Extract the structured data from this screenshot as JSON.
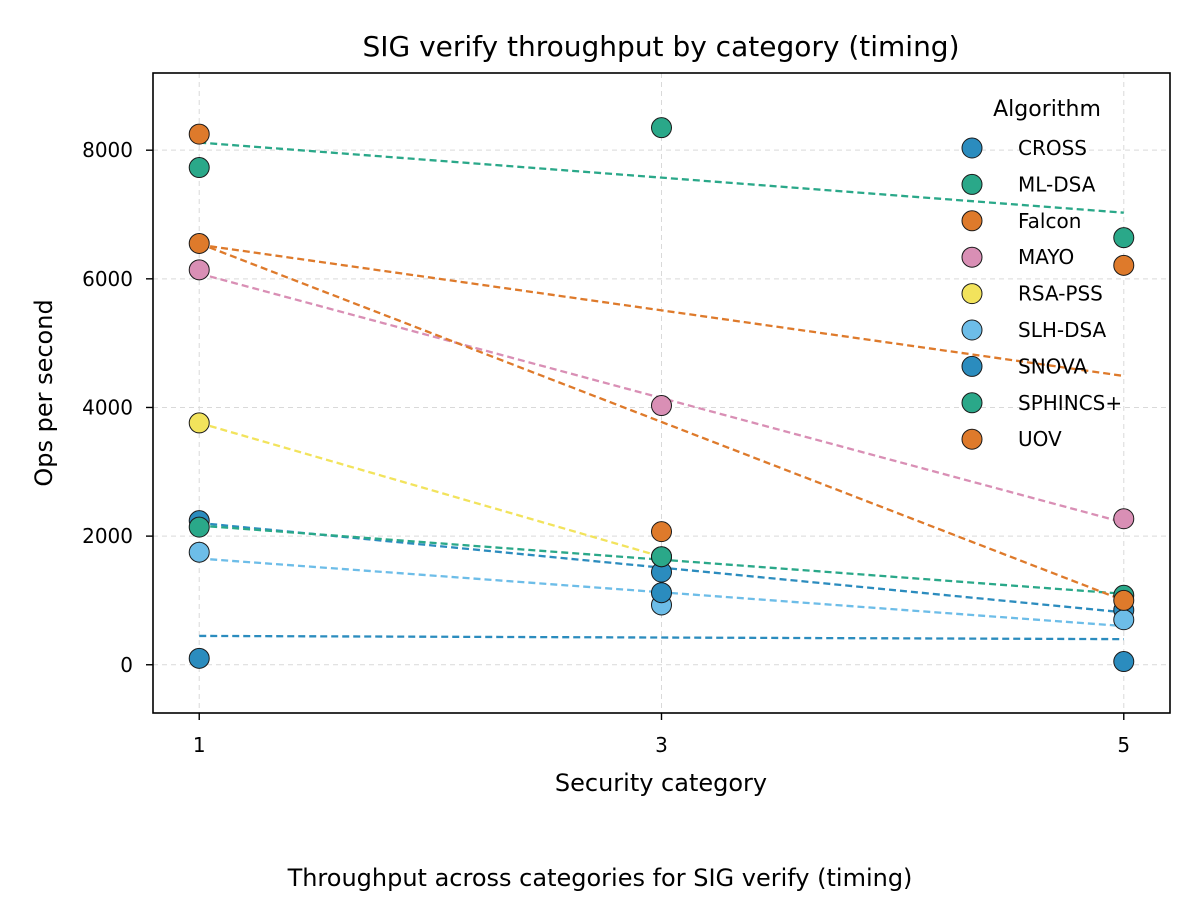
{
  "chart_data": {
    "type": "scatter",
    "title": "SIG verify throughput by category (timing)",
    "xlabel": "Security category",
    "ylabel": "Ops per second",
    "x_ticks": [
      1,
      3,
      5
    ],
    "y_ticks": [
      0,
      2000,
      4000,
      6000,
      8000
    ],
    "xlim": [
      0.8,
      5.2
    ],
    "ylim": [
      -750,
      9200
    ],
    "grid": true,
    "legend_title": "Algorithm",
    "legend_position": "top-right",
    "trend_lines": "dashed linear fit per series",
    "series": [
      {
        "name": "CROSS",
        "color": "#2b8cbe",
        "x": [
          1,
          3,
          5
        ],
        "y": [
          2240,
          1440,
          850
        ]
      },
      {
        "name": "ML-DSA",
        "color": "#2aa889",
        "x": [
          1,
          3,
          5
        ],
        "y": [
          7730,
          8350,
          6640
        ]
      },
      {
        "name": "Falcon",
        "color": "#de7a2b",
        "x": [
          1,
          3,
          5
        ],
        "y": [
          8250,
          2070,
          6210
        ]
      },
      {
        "name": "MAYO",
        "color": "#d98fb5",
        "x": [
          1,
          3,
          5
        ],
        "y": [
          6140,
          4030,
          2270
        ]
      },
      {
        "name": "RSA-PSS",
        "color": "#f2e35c",
        "x": [
          1,
          3
        ],
        "y": [
          3760,
          1680
        ]
      },
      {
        "name": "SLH-DSA",
        "color": "#6dbde8",
        "x": [
          1,
          3,
          5
        ],
        "y": [
          1750,
          930,
          700
        ]
      },
      {
        "name": "SNOVA",
        "color": "#2b8cbe",
        "x": [
          1,
          3,
          5
        ],
        "y": [
          100,
          1120,
          50
        ]
      },
      {
        "name": "SPHINCS+",
        "color": "#2aa889",
        "x": [
          1,
          3,
          5
        ],
        "y": [
          2140,
          1680,
          1080
        ]
      },
      {
        "name": "UOV",
        "color": "#de7a2b",
        "x": [
          1,
          5
        ],
        "y": [
          6550,
          1000
        ]
      }
    ]
  },
  "caption": "Throughput across categories for SIG verify (timing)"
}
